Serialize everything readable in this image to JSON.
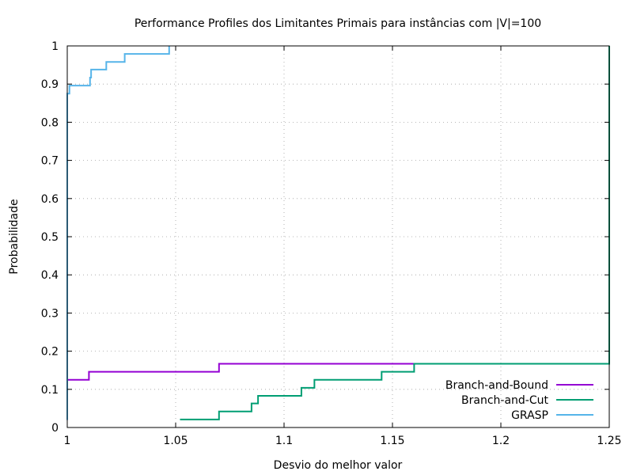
{
  "chart_data": {
    "type": "line",
    "title": "Performance Profiles dos Limitantes Primais para instâncias com |V|=100",
    "xlabel": "Desvio do melhor valor",
    "ylabel": "Probabilidade",
    "xlim": [
      1,
      1.25
    ],
    "ylim": [
      0,
      1
    ],
    "grid": true,
    "legend_position": "bottom-right",
    "x_ticks": [
      "1",
      "1.05",
      "1.1",
      "1.15",
      "1.2",
      "1.25"
    ],
    "y_ticks": [
      "0",
      "0.1",
      "0.2",
      "0.3",
      "0.4",
      "0.5",
      "0.6",
      "0.7",
      "0.8",
      "0.9",
      "1"
    ],
    "series": [
      {
        "name": "Branch-and-Bound",
        "color": "#9400d3",
        "step": true,
        "x": [
          1.0,
          1.0,
          1.01,
          1.07,
          1.25,
          1.25
        ],
        "y": [
          0.02,
          0.125,
          0.146,
          0.167,
          0.167,
          1.0
        ]
      },
      {
        "name": "Branch-and-Cut",
        "color": "#009e73",
        "step": true,
        "x": [
          1.052,
          1.07,
          1.085,
          1.088,
          1.108,
          1.114,
          1.145,
          1.16,
          1.25,
          1.25
        ],
        "y": [
          0.021,
          0.042,
          0.063,
          0.083,
          0.104,
          0.125,
          0.146,
          0.167,
          0.167,
          1.0
        ]
      },
      {
        "name": "GRASP",
        "color": "#56b4e9",
        "step": true,
        "x": [
          1.0,
          1.0,
          1.001,
          1.0105,
          1.011,
          1.018,
          1.0265,
          1.047,
          1.047
        ],
        "y": [
          0.02,
          0.875,
          0.896,
          0.917,
          0.938,
          0.958,
          0.979,
          0.979,
          1.0
        ]
      }
    ]
  }
}
